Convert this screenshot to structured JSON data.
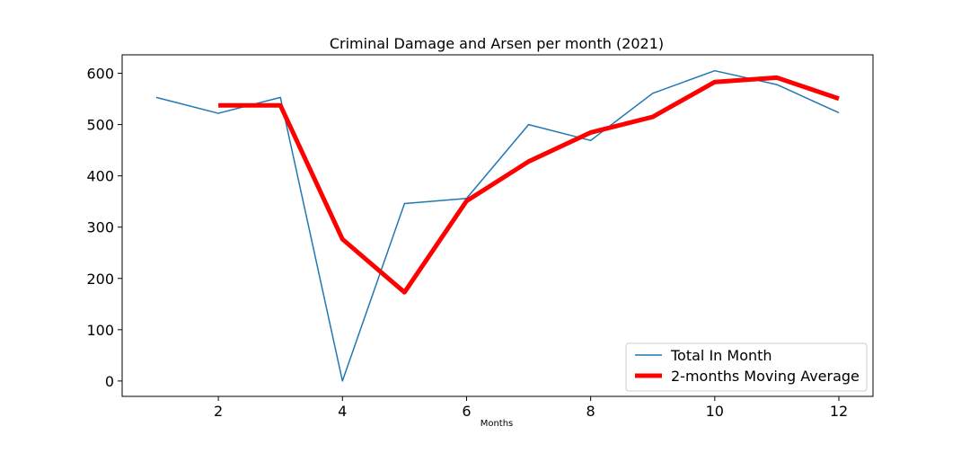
{
  "chart_data": {
    "type": "line",
    "title": "Criminal Damage and Arsen per month (2021)",
    "xlabel": "Months",
    "ylabel": "",
    "xlim": [
      0.45,
      12.55
    ],
    "ylim": [
      -30,
      636
    ],
    "xticks": [
      2,
      4,
      6,
      8,
      10,
      12
    ],
    "yticks": [
      0,
      100,
      200,
      300,
      400,
      500,
      600
    ],
    "grid": false,
    "legend_position": "lower-right",
    "series": [
      {
        "name": "Total In Month",
        "color": "#1f77b4",
        "line_width": "thin",
        "x": [
          1,
          2,
          3,
          4,
          5,
          6,
          7,
          8,
          9,
          10,
          11,
          12
        ],
        "y": [
          553,
          522,
          553,
          0,
          346,
          356,
          500,
          469,
          561,
          605,
          578,
          523
        ]
      },
      {
        "name": "2-months Moving Average",
        "color": "#ff0000",
        "line_width": "thick",
        "x": [
          2,
          3,
          4,
          5,
          6,
          7,
          8,
          9,
          10,
          11,
          12
        ],
        "y": [
          537.5,
          537.5,
          276.5,
          173,
          351,
          428,
          484.5,
          515,
          583,
          591.5,
          550.5
        ]
      }
    ]
  }
}
